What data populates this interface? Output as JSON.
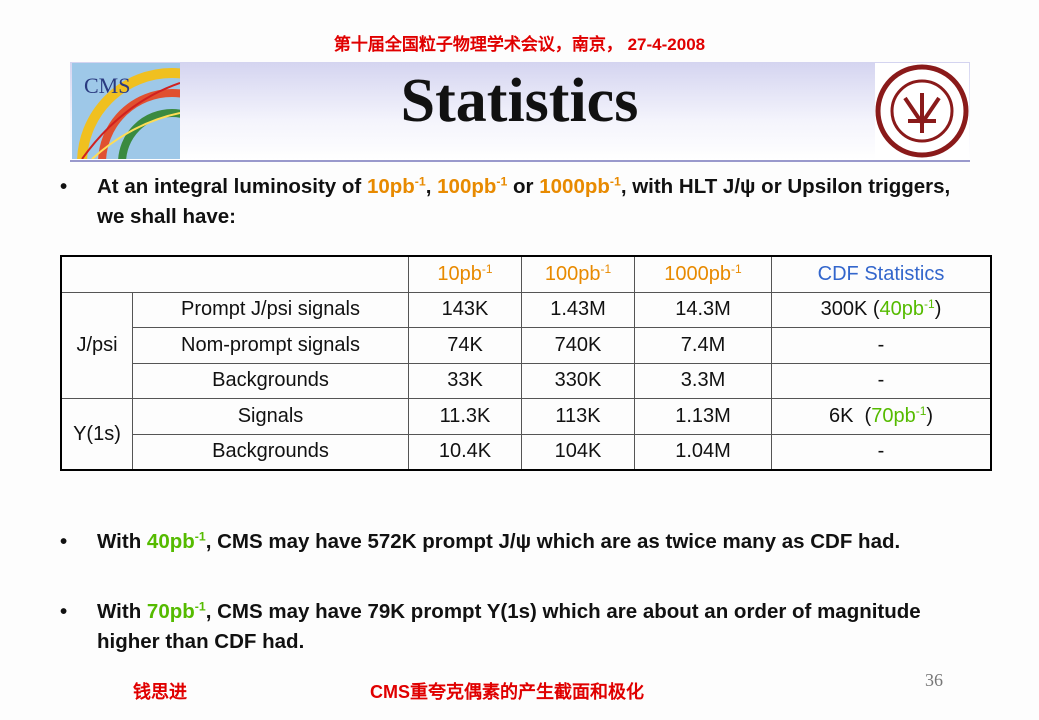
{
  "header": {
    "conference": "第十届全国粒子物理学术会议，南京， 27-4-2008",
    "title": "Statistics"
  },
  "bullets": [
    [
      "At an integral luminosity of ",
      "10pb",
      "-1",
      ", ",
      "100pb",
      "-1",
      " or ",
      "1000pb",
      "-1",
      ", with HLT J/",
      "ψ",
      " or Upsilon triggers, we shall have:"
    ],
    [
      "With ",
      "40pb",
      "-1",
      ", CMS may have 572K prompt J/",
      "ψ",
      " which are as twice many as CDF had."
    ],
    [
      "With ",
      "70pb",
      "-1",
      ", CMS may have 79K prompt Y(1s) which are about an order of magnitude higher than CDF had."
    ]
  ],
  "table": {
    "columns": [
      [
        "10pb",
        "-1"
      ],
      [
        "100pb",
        "-1"
      ],
      [
        "1000pb",
        "-1"
      ],
      [
        "CDF Statistics"
      ]
    ],
    "groups": [
      {
        "label": "J/psi",
        "rows": [
          [
            "Prompt J/psi signals",
            "143K",
            "1.43M",
            "14.3M",
            [
              "300K (",
              "40pb",
              "-1",
              ")"
            ]
          ],
          [
            "Nom-prompt signals",
            "74K",
            "740K",
            "7.4M",
            "-"
          ],
          [
            "Backgrounds",
            "33K",
            "330K",
            "3.3M",
            "-"
          ]
        ]
      },
      {
        "label": "Y(1s)",
        "rows": [
          [
            "Signals",
            "11.3K",
            "113K",
            "1.13M",
            [
              "6K  (",
              "70pb",
              "-1",
              ")"
            ]
          ],
          [
            "Backgrounds",
            "10.4K",
            "104K",
            "1.04M",
            "-"
          ]
        ]
      }
    ]
  },
  "footer": {
    "author": "钱思进",
    "topic": "CMS重夸克偶素的产生截面和极化",
    "page": "36"
  }
}
